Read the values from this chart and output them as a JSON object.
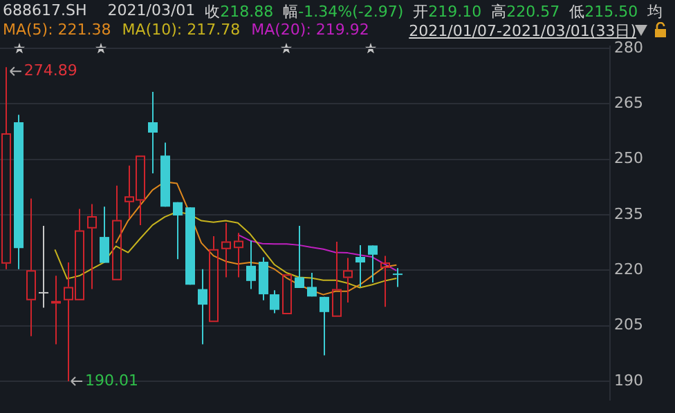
{
  "chart_data": {
    "type": "candlestick",
    "title": "688617.SH",
    "subtitle": "2021/03/01",
    "categories": [
      null,
      null,
      null,
      null,
      null,
      null,
      null,
      null,
      null,
      null,
      null,
      null,
      null,
      null,
      null,
      null,
      null,
      null,
      null,
      null,
      null,
      null,
      null,
      null,
      null,
      null,
      null,
      null,
      null,
      null,
      null,
      null,
      null
    ],
    "ohlc": [
      [
        221.8,
        274.89,
        220.3,
        257.0
      ],
      [
        260.0,
        262.0,
        220.3,
        226.0
      ],
      [
        211.9,
        239.4,
        202.2,
        220.0
      ],
      [
        214.1,
        232.0,
        209.9,
        214.1
      ],
      [
        211.0,
        218.5,
        200.0,
        211.7
      ],
      [
        211.9,
        222.1,
        190.01,
        215.5
      ],
      [
        211.9,
        236.6,
        211.9,
        230.8
      ],
      [
        231.3,
        237.9,
        214.9,
        234.6
      ],
      [
        229.0,
        237.2,
        222.0,
        222.0
      ],
      [
        217.3,
        242.9,
        217.3,
        233.6
      ],
      [
        238.4,
        248.3,
        234.0,
        240.0
      ],
      [
        238.8,
        251.0,
        232.2,
        251.0
      ],
      [
        260.0,
        268.2,
        246.2,
        257.2
      ],
      [
        251.0,
        254.5,
        237.2,
        237.2
      ],
      [
        238.4,
        238.4,
        223.0,
        234.8
      ],
      [
        237.0,
        237.0,
        216.1,
        216.1
      ],
      [
        214.9,
        220.3,
        200.0,
        210.7
      ],
      [
        206.0,
        229.2,
        206.0,
        225.7
      ],
      [
        225.7,
        232.8,
        218.1,
        227.8
      ],
      [
        226.0,
        230.1,
        218.1,
        228.0
      ],
      [
        221.2,
        228.0,
        214.9,
        217.1
      ],
      [
        222.3,
        223.5,
        211.9,
        213.5
      ],
      [
        213.5,
        214.6,
        208.4,
        209.3
      ],
      [
        208.1,
        218.9,
        208.1,
        218.9
      ],
      [
        218.1,
        232.0,
        215.2,
        215.2
      ],
      [
        215.5,
        219.3,
        212.9,
        212.9
      ],
      [
        212.8,
        212.8,
        197.0,
        208.7
      ],
      [
        207.4,
        227.7,
        207.4,
        214.9
      ],
      [
        217.9,
        223.3,
        211.3,
        220.0
      ],
      [
        223.6,
        226.8,
        215.5,
        222.1
      ],
      [
        226.7,
        226.7,
        216.7,
        224.2
      ],
      [
        220.6,
        223.9,
        210.1,
        222.1
      ],
      [
        219.1,
        220.57,
        215.5,
        218.88
      ]
    ],
    "colors": [
      "#d0242c",
      "#3ccdd4",
      "#d0242c",
      "#c8c8c8",
      "#d0242c",
      "#d0242c",
      "#d0242c",
      "#d0242c",
      "#3ccdd4",
      "#d0242c",
      "#d0242c",
      "#d0242c",
      "#3ccdd4",
      "#3ccdd4",
      "#3ccdd4",
      "#3ccdd4",
      "#3ccdd4",
      "#d0242c",
      "#d0242c",
      "#d0242c",
      "#3ccdd4",
      "#3ccdd4",
      "#3ccdd4",
      "#d0242c",
      "#3ccdd4",
      "#3ccdd4",
      "#3ccdd4",
      "#d0242c",
      "#d0242c",
      "#3ccdd4",
      "#3ccdd4",
      "#d0242c",
      "#3ccdd4"
    ],
    "series": [
      {
        "name": "MA(5): 221.38",
        "type": "line",
        "color": "#e0891e",
        "values": [
          null,
          null,
          null,
          null,
          null,
          null,
          null,
          null,
          null,
          227.4,
          233.4,
          237.6,
          241.7,
          243.9,
          243.5,
          235.8,
          227.4,
          223.9,
          222.4,
          221.7,
          222.1,
          221.7,
          220.3,
          217.9,
          216.1,
          214.6,
          213.4,
          214.3,
          214.3,
          216.1,
          218.5,
          220.9,
          221.4
        ]
      },
      {
        "name": "MA(10): 217.78",
        "type": "line",
        "color": "#c8b41e",
        "values": [
          null,
          null,
          null,
          null,
          225.6,
          217.7,
          218.5,
          220.3,
          222.1,
          226.5,
          224.8,
          228.6,
          232.2,
          234.4,
          235.8,
          235.2,
          233.4,
          233.0,
          233.4,
          232.8,
          229.8,
          225.7,
          221.5,
          219.3,
          218.1,
          217.9,
          217.3,
          217.3,
          216.5,
          215.3,
          216.1,
          217.1,
          217.8
        ]
      },
      {
        "name": "MA(20): 219.92",
        "type": "line",
        "color": "#c020c0",
        "values": [
          null,
          null,
          null,
          null,
          null,
          null,
          null,
          null,
          null,
          null,
          null,
          null,
          null,
          null,
          null,
          null,
          null,
          null,
          null,
          229.6,
          228.0,
          227.2,
          227.1,
          227.1,
          226.8,
          226.2,
          225.7,
          224.8,
          224.7,
          224.1,
          223.6,
          221.7,
          219.9
        ]
      }
    ],
    "ylim": [
      185,
      280.5
    ],
    "yticks": [
      190,
      205,
      220,
      235,
      250,
      265,
      280
    ],
    "grid": "y",
    "legend": "top left",
    "marker": "none",
    "annotations": [
      "收218.88",
      "幅-1.34%(-2.97)",
      "开219.10",
      "高220.57",
      "低215.50",
      "均",
      "2021/01/07-2021/03/01(33日)",
      "274.89",
      "190.01"
    ]
  }
}
